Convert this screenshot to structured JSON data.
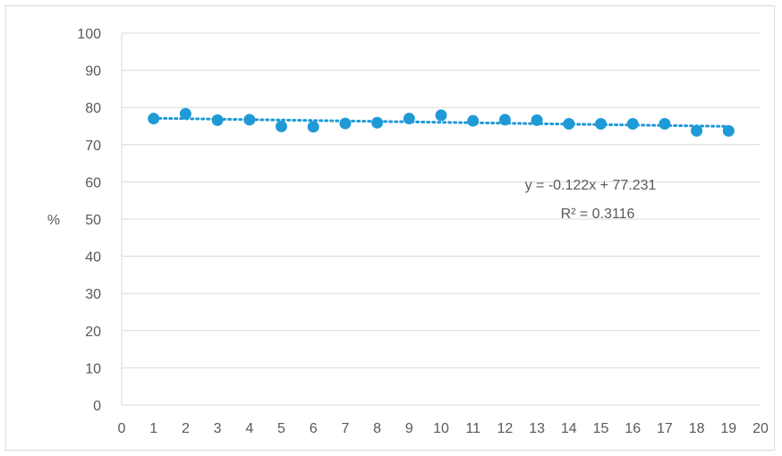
{
  "chart_data": {
    "type": "scatter",
    "title": "",
    "xlabel": "",
    "ylabel": "%",
    "xlim": [
      0,
      20
    ],
    "ylim": [
      0,
      100
    ],
    "x_ticks": [
      0,
      1,
      2,
      3,
      4,
      5,
      6,
      7,
      8,
      9,
      10,
      11,
      12,
      13,
      14,
      15,
      16,
      17,
      18,
      19,
      20
    ],
    "y_ticks": [
      0,
      10,
      20,
      30,
      40,
      50,
      60,
      70,
      80,
      90,
      100
    ],
    "grid": "horizontal",
    "legend": "none",
    "series": [
      {
        "x": [
          1,
          2,
          3,
          4,
          5,
          6,
          7,
          8,
          9,
          10,
          11,
          12,
          13,
          14,
          15,
          16,
          17,
          18,
          19
        ],
        "y": [
          77.0,
          78.3,
          76.6,
          76.7,
          74.9,
          74.8,
          75.7,
          75.9,
          77.0,
          77.9,
          76.4,
          76.7,
          76.6,
          75.6,
          75.6,
          75.6,
          75.6,
          73.7,
          73.7
        ],
        "color": "#1f9ad6"
      }
    ],
    "trendline": {
      "type": "linear",
      "slope": -0.122,
      "intercept": 77.231,
      "equation_label": "y = -0.122x + 77.231",
      "r2_label": "R² = 0.3116",
      "color": "#1f9ad6",
      "style": "dotted"
    }
  }
}
